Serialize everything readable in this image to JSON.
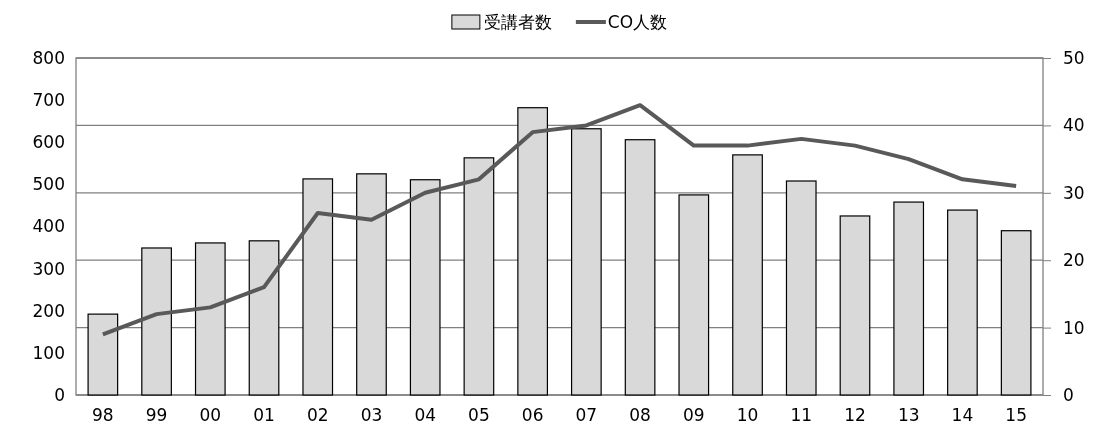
{
  "chart_data": {
    "type": "bar",
    "categories": [
      "98",
      "99",
      "00",
      "01",
      "02",
      "03",
      "04",
      "05",
      "06",
      "07",
      "08",
      "09",
      "10",
      "11",
      "12",
      "13",
      "14",
      "15"
    ],
    "series": [
      {
        "name": "受講者数",
        "color": "#d9d9d9",
        "values": [
          192,
          349,
          361,
          366,
          513,
          525,
          511,
          563,
          682,
          632,
          606,
          475,
          570,
          508,
          425,
          458,
          439,
          390
        ]
      },
      {
        "name": "CO人数",
        "type": "line",
        "axis": "y2",
        "color": "#595959",
        "values": [
          9,
          12,
          13,
          16,
          27,
          26,
          30,
          32,
          39,
          40,
          43,
          37,
          37,
          38,
          37,
          35,
          32,
          31
        ]
      }
    ],
    "ylim": [
      0,
      800
    ],
    "yticks": [
      0,
      100,
      200,
      300,
      400,
      500,
      600,
      700,
      800
    ],
    "y2lim": [
      0,
      50
    ],
    "y2ticks": [
      0,
      10,
      20,
      30,
      40,
      50
    ],
    "grid": true,
    "legend": "top",
    "marker": "none",
    "line_style": "solid"
  }
}
